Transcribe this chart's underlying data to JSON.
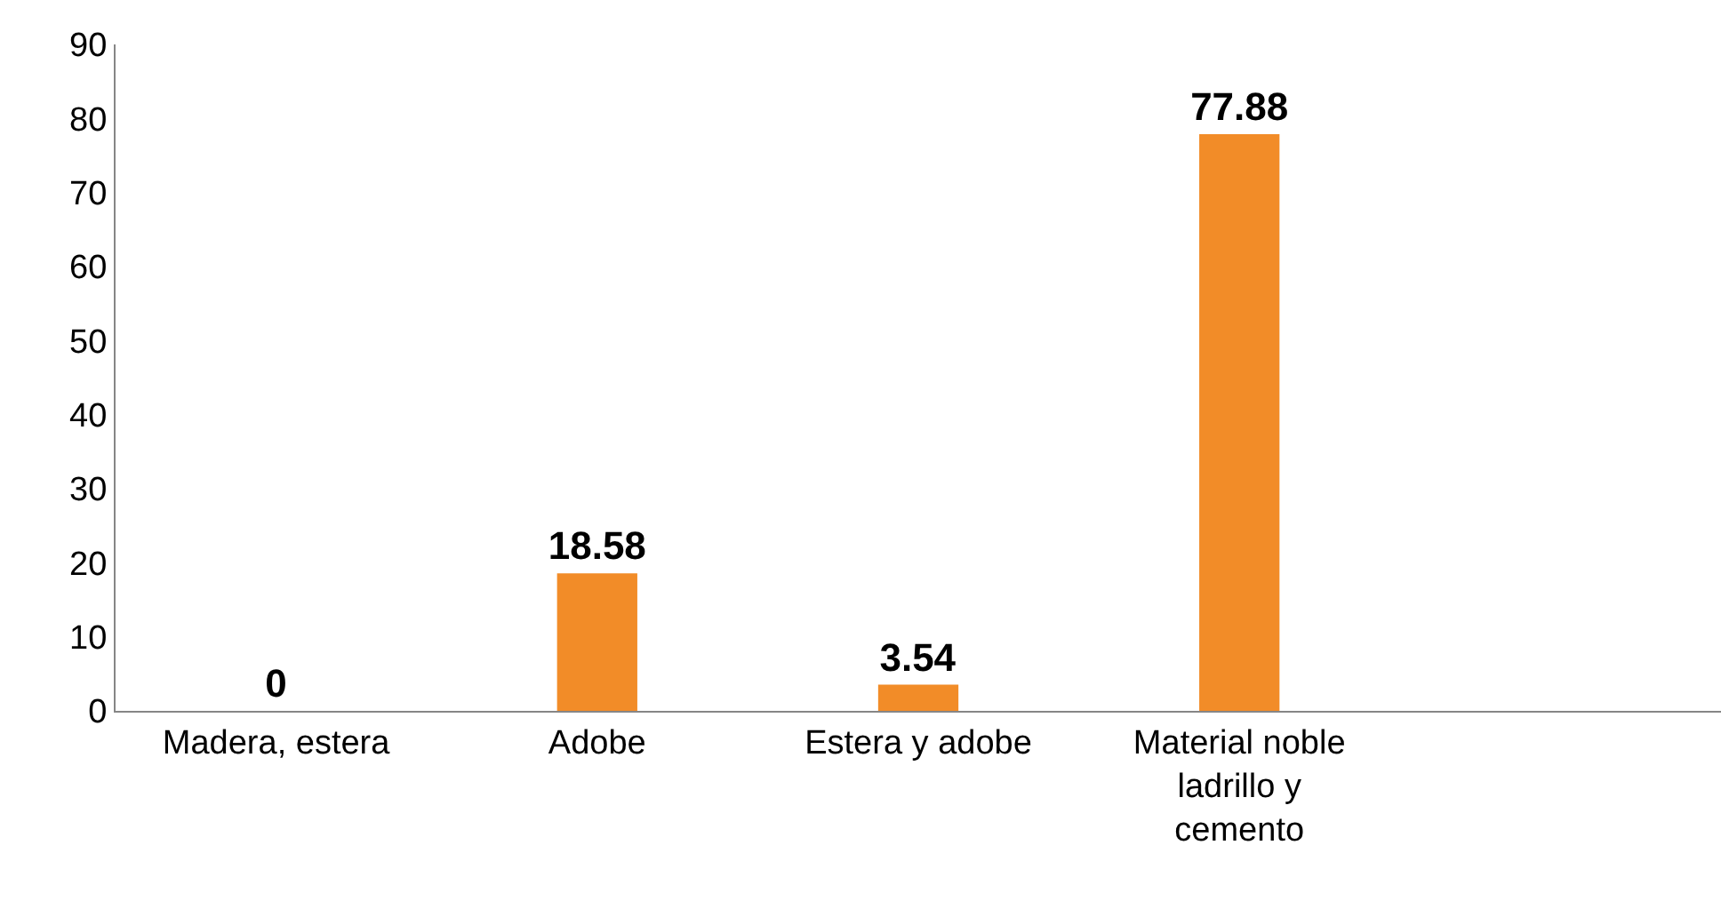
{
  "chart_data": {
    "type": "bar",
    "categories": [
      "Madera, estera",
      "Adobe",
      "Estera y adobe",
      "Material noble ladrillo y cemento",
      null
    ],
    "values": [
      0,
      18.58,
      3.54,
      77.88,
      null
    ],
    "color": "#f28c28",
    "ylim": [
      0,
      90
    ],
    "yticks": [
      0,
      10,
      20,
      30,
      40,
      50,
      60,
      70,
      80,
      90
    ],
    "grid": false,
    "data_labels": true
  }
}
